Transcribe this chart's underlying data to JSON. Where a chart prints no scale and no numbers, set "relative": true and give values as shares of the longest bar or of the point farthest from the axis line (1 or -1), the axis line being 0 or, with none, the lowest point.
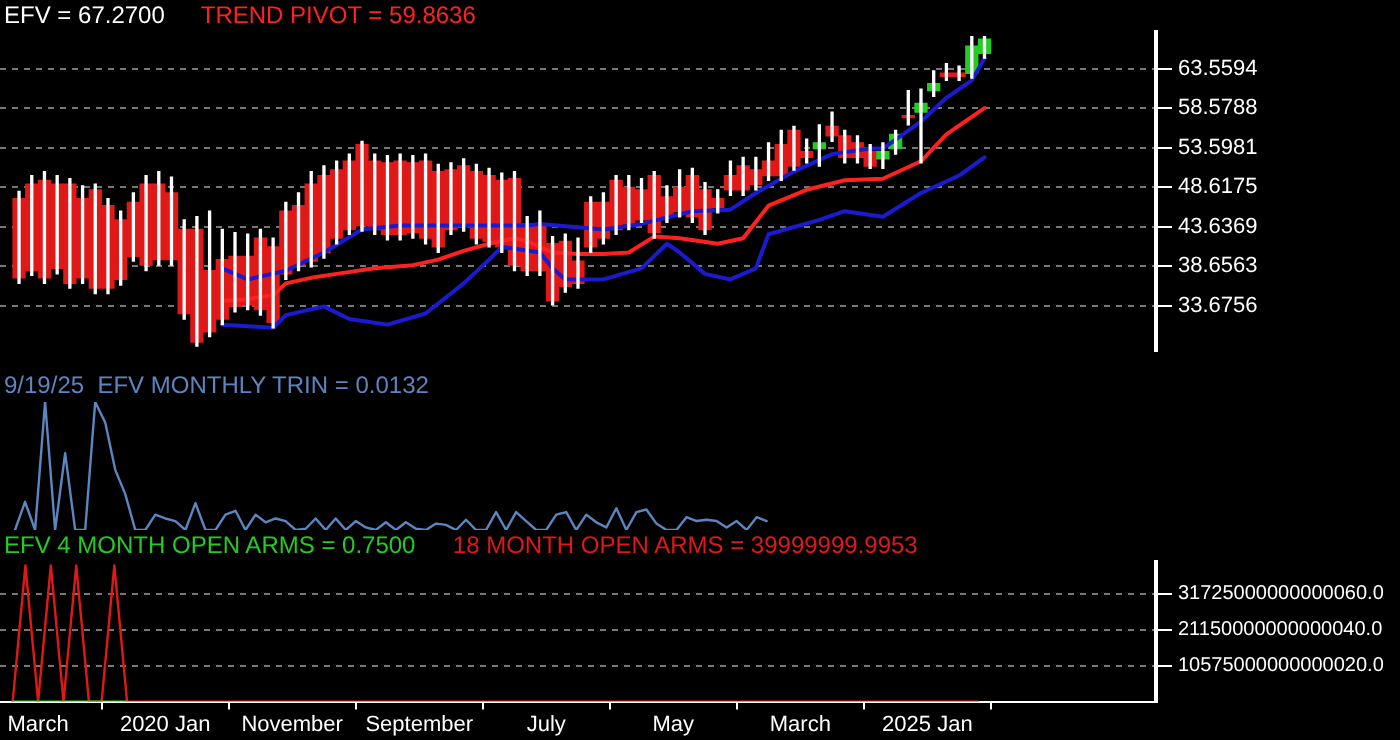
{
  "chart_data": [
    {
      "type": "candlestick",
      "grid": "y",
      "tick_labels": "y",
      "ylim": [
        28,
        68.2
      ],
      "annotations": [
        "EFV = 67.2700"
      ],
      "yticks": [
        33.6756,
        38.6563,
        43.6369,
        48.6175,
        53.5981,
        58.5788,
        63.5594
      ],
      "categories": [
        null,
        null,
        null,
        null,
        null,
        null,
        null,
        null,
        null,
        null,
        null,
        null,
        null,
        null,
        null,
        null,
        null,
        null,
        null,
        null,
        null,
        null,
        null,
        null,
        null,
        null,
        null,
        null,
        null,
        null,
        null,
        null,
        null,
        null,
        null,
        null,
        null,
        null,
        null,
        null,
        null,
        null,
        null,
        null,
        null,
        null,
        null,
        null,
        null,
        null,
        null,
        null,
        null,
        null,
        null,
        null,
        null,
        null,
        null,
        null,
        null,
        null,
        null,
        null,
        null,
        null,
        null,
        null,
        null,
        null,
        null,
        null,
        null,
        null,
        null,
        null,
        null,
        null,
        null,
        null,
        null,
        null,
        null,
        null,
        null,
        null,
        null,
        null,
        null,
        null,
        null
      ],
      "series": [
        {
          "type": "candlestick",
          "color": "#ffffff",
          "ohlc": [
            null,
            [
              47.2,
              48.1,
              36.5,
              37.2
            ],
            [
              49.0,
              50.1,
              37.5,
              38.1
            ],
            [
              49.5,
              50.6,
              36.5,
              37.2
            ],
            [
              49.0,
              50.1,
              37.7,
              38.4
            ],
            [
              49.0,
              49.7,
              35.9,
              36.5
            ],
            [
              47.2,
              48.8,
              36.5,
              37.2
            ],
            [
              48.3,
              49.0,
              35.2,
              35.9
            ],
            [
              46.3,
              47.2,
              35.2,
              35.9
            ],
            [
              44.5,
              45.6,
              36.3,
              37.0
            ],
            [
              46.7,
              47.9,
              39.3,
              39.9
            ],
            [
              49.0,
              50.1,
              38.1,
              38.8
            ],
            [
              49.0,
              50.6,
              38.8,
              39.5
            ],
            [
              47.9,
              49.9,
              38.8,
              39.5
            ],
            [
              43.3,
              44.5,
              32.0,
              32.7
            ],
            [
              43.3,
              44.9,
              28.6,
              29.1
            ],
            [
              38.1,
              45.6,
              29.8,
              30.4
            ],
            [
              39.5,
              43.3,
              31.3,
              32.0
            ],
            [
              39.9,
              42.9,
              32.9,
              33.6
            ],
            [
              39.9,
              42.7,
              33.2,
              33.8
            ],
            [
              42.2,
              43.3,
              32.5,
              33.2
            ],
            [
              41.1,
              42.2,
              30.9,
              31.6
            ],
            [
              45.6,
              46.7,
              37.0,
              37.7
            ],
            [
              46.3,
              47.9,
              38.1,
              38.8
            ],
            [
              49.0,
              50.6,
              38.6,
              39.3
            ],
            [
              50.1,
              51.3,
              39.7,
              40.4
            ],
            [
              50.8,
              51.9,
              41.5,
              42.2
            ],
            [
              51.9,
              52.8,
              42.7,
              43.3
            ],
            [
              54.0,
              54.4,
              43.1,
              43.8
            ],
            [
              51.9,
              52.8,
              42.7,
              43.3
            ],
            [
              51.7,
              52.6,
              42.0,
              42.7
            ],
            [
              51.9,
              52.8,
              42.0,
              42.7
            ],
            [
              51.7,
              52.6,
              42.2,
              42.9
            ],
            [
              51.9,
              52.8,
              41.5,
              42.2
            ],
            [
              50.6,
              51.5,
              40.4,
              41.1
            ],
            [
              50.8,
              51.7,
              42.7,
              43.3
            ],
            [
              51.3,
              52.2,
              43.1,
              43.8
            ],
            [
              50.6,
              51.5,
              41.5,
              42.2
            ],
            [
              50.1,
              51.0,
              41.1,
              41.8
            ],
            [
              49.5,
              50.4,
              40.4,
              41.1
            ],
            [
              49.7,
              50.6,
              38.1,
              38.8
            ],
            [
              44.0,
              44.9,
              37.5,
              38.1
            ],
            [
              44.0,
              45.6,
              37.5,
              38.1
            ],
            [
              41.5,
              42.4,
              33.8,
              34.3
            ],
            [
              41.8,
              42.7,
              35.4,
              36.1
            ],
            [
              39.3,
              42.2,
              35.9,
              36.5
            ],
            [
              46.7,
              47.4,
              40.4,
              41.1
            ],
            [
              46.7,
              47.9,
              41.5,
              42.2
            ],
            [
              49.5,
              50.1,
              42.7,
              43.3
            ],
            [
              48.6,
              50.1,
              43.3,
              44.0
            ],
            [
              48.3,
              49.7,
              44.2,
              44.5
            ],
            [
              50.1,
              50.6,
              42.2,
              42.9
            ],
            [
              47.4,
              48.8,
              44.2,
              44.9
            ],
            [
              48.6,
              50.8,
              44.9,
              45.6
            ],
            [
              50.1,
              51.0,
              44.2,
              44.9
            ],
            [
              48.3,
              49.2,
              42.7,
              43.3
            ],
            [
              47.2,
              48.3,
              45.4,
              46.1
            ],
            [
              50.1,
              51.9,
              47.6,
              48.3
            ],
            [
              51.3,
              52.4,
              47.6,
              48.3
            ],
            [
              50.8,
              52.4,
              48.3,
              49.0
            ],
            [
              51.9,
              54.2,
              49.5,
              50.1
            ],
            [
              54.0,
              55.8,
              49.5,
              50.1
            ],
            [
              55.8,
              56.3,
              50.8,
              51.3
            ],
            [
              53.1,
              54.7,
              51.7,
              52.4
            ],
            [
              53.5,
              56.5,
              51.3,
              54.2
            ],
            [
              56.3,
              58.1,
              54.4,
              55.1
            ],
            [
              55.1,
              55.8,
              51.7,
              52.4
            ],
            [
              54.2,
              55.1,
              51.7,
              52.4
            ],
            [
              53.1,
              54.0,
              51.0,
              51.3
            ],
            [
              52.2,
              54.2,
              51.0,
              53.1
            ],
            [
              53.5,
              55.8,
              52.8,
              55.3
            ],
            [
              57.6,
              60.8,
              56.5,
              57.4
            ],
            [
              58.1,
              61.0,
              51.7,
              59.2
            ],
            [
              60.8,
              63.3,
              60.1,
              61.7
            ],
            [
              63.0,
              64.2,
              62.1,
              62.6
            ],
            [
              63.0,
              63.9,
              62.1,
              62.6
            ],
            [
              63.0,
              67.6,
              62.4,
              66.4
            ],
            [
              65.5,
              67.6,
              64.9,
              67.3
            ],
            null,
            null,
            null,
            null,
            null,
            null,
            null,
            null,
            null,
            null,
            null,
            null,
            null
          ],
          "colors": [
            null,
            "#e01818",
            "#e01818",
            "#e01818",
            "#e01818",
            "#e01818",
            "#e01818",
            "#e01818",
            "#e01818",
            "#e01818",
            "#e01818",
            "#e01818",
            "#e01818",
            "#e01818",
            "#e01818",
            "#e01818",
            "#e01818",
            "#e01818",
            "#e01818",
            "#e01818",
            "#e01818",
            "#e01818",
            "#e01818",
            "#e01818",
            "#e01818",
            "#e01818",
            "#e01818",
            "#e01818",
            "#e01818",
            "#e01818",
            "#e01818",
            "#e01818",
            "#e01818",
            "#e01818",
            "#e01818",
            "#e01818",
            "#e01818",
            "#e01818",
            "#e01818",
            "#e01818",
            "#e01818",
            "#e01818",
            "#e01818",
            "#e01818",
            "#e01818",
            "#e01818",
            "#e01818",
            "#e01818",
            "#e01818",
            "#e01818",
            "#e01818",
            "#e01818",
            "#e01818",
            "#e01818",
            "#e01818",
            "#e01818",
            "#e01818",
            "#e01818",
            "#e01818",
            "#e01818",
            "#e01818",
            "#e01818",
            "#e01818",
            "#e01818",
            "#22cc22",
            "#e01818",
            "#e01818",
            "#e01818",
            "#e01818",
            "#22cc22",
            "#22cc22",
            "#e01818",
            "#22cc22",
            "#22cc22",
            "#e01818",
            "#e01818",
            "#22cc22",
            "#22cc22",
            null,
            null,
            null,
            null,
            null,
            null,
            null,
            null,
            null,
            null,
            null,
            null,
            null
          ]
        },
        {
          "type": "line",
          "name": "TREND PIVOT = 59.8636",
          "color": "#ff2020",
          "values": [
            null,
            null,
            null,
            null,
            null,
            null,
            null,
            null,
            null,
            null,
            null,
            null,
            null,
            null,
            null,
            null,
            null,
            34.3,
            null,
            34.5,
            34.8,
            35.0,
            36.5,
            null,
            37.2,
            null,
            37.7,
            null,
            null,
            38.4,
            null,
            null,
            38.8,
            null,
            39.5,
            null,
            40.6,
            null,
            41.5,
            null,
            42.2,
            41.8,
            null,
            40.4,
            null,
            40.2,
            null,
            40.2,
            null,
            40.4,
            null,
            42.4,
            null,
            42.2,
            null,
            null,
            41.5,
            null,
            42.2,
            null,
            46.3,
            null,
            null,
            48.3,
            null,
            null,
            49.5,
            null,
            null,
            49.7,
            null,
            null,
            51.9,
            null,
            55.3,
            null,
            null,
            58.6,
            null,
            null,
            null,
            null,
            null,
            null,
            null,
            null,
            null,
            null,
            null,
            null,
            null
          ]
        },
        {
          "type": "line",
          "color": "#1a1ad0",
          "values": [
            null,
            null,
            null,
            null,
            null,
            null,
            null,
            null,
            null,
            null,
            null,
            null,
            null,
            null,
            null,
            null,
            null,
            38.4,
            null,
            37.0,
            null,
            null,
            38.1,
            null,
            null,
            40.4,
            null,
            null,
            43.3,
            null,
            null,
            43.8,
            null,
            null,
            null,
            null,
            43.8,
            null,
            null,
            null,
            null,
            43.8,
            44.0,
            null,
            null,
            null,
            null,
            43.3,
            null,
            null,
            44.0,
            null,
            null,
            null,
            45.6,
            null,
            null,
            45.8,
            null,
            47.9,
            null,
            null,
            50.6,
            null,
            null,
            52.8,
            null,
            null,
            53.5,
            53.5,
            null,
            null,
            56.9,
            null,
            59.9,
            null,
            62.1,
            64.9,
            null,
            null,
            null,
            null,
            null,
            null,
            null,
            null,
            null,
            null,
            null,
            null,
            null
          ]
        },
        {
          "type": "line",
          "color": "#1a1ad0",
          "values": [
            null,
            null,
            null,
            null,
            null,
            null,
            null,
            null,
            null,
            null,
            null,
            null,
            null,
            null,
            null,
            null,
            null,
            31.3,
            null,
            null,
            null,
            30.9,
            32.5,
            null,
            null,
            33.6,
            null,
            32.0,
            null,
            null,
            31.3,
            null,
            null,
            32.7,
            null,
            null,
            36.5,
            null,
            39.5,
            41.1,
            null,
            null,
            40.4,
            38.4,
            37.0,
            null,
            null,
            37.0,
            null,
            null,
            38.4,
            null,
            41.5,
            40.4,
            null,
            37.7,
            null,
            37.0,
            null,
            38.4,
            42.7,
            null,
            null,
            null,
            44.5,
            null,
            45.6,
            null,
            null,
            44.9,
            null,
            null,
            47.9,
            null,
            null,
            50.1,
            null,
            52.4,
            null,
            null,
            null,
            null,
            null,
            null,
            null,
            null,
            null,
            null,
            null,
            null,
            null
          ]
        }
      ]
    },
    {
      "type": "line",
      "relative": true,
      "tick_labels": false,
      "categories": [
        null,
        null,
        null,
        null,
        null,
        null,
        null,
        null,
        null,
        null,
        null,
        null,
        null,
        null,
        null,
        null,
        null,
        null,
        null,
        null,
        null,
        null,
        null,
        null,
        null,
        null,
        null,
        null,
        null,
        null,
        null,
        null,
        null,
        null,
        null,
        null,
        null,
        null,
        null,
        null,
        null,
        null,
        null,
        null,
        null,
        null,
        null,
        null,
        null,
        null,
        null,
        null,
        null,
        null,
        null,
        null,
        null,
        null,
        null,
        null,
        null,
        null,
        null,
        null,
        null,
        null,
        null,
        null,
        null,
        null,
        null,
        null,
        null,
        null,
        null,
        null,
        null,
        null,
        null,
        null,
        null,
        null,
        null,
        null,
        null,
        null,
        null,
        null,
        null,
        null,
        null
      ],
      "series": [
        {
          "name": "9/19/25  EFV MONTHLY TRIN = 0.0132",
          "color": "#5d85c0",
          "values": [
            null,
            0,
            0.22,
            0,
            1,
            0,
            0.6,
            0,
            0,
            1,
            0.84,
            0.47,
            0.28,
            0,
            0,
            0.12,
            0.09,
            0.07,
            0,
            0.21,
            0,
            0,
            0.12,
            0.15,
            0,
            0.12,
            0.06,
            0.09,
            0.07,
            0,
            0.01,
            0.09,
            0,
            0.09,
            0,
            0.07,
            0.02,
            0,
            0.06,
            0,
            0.06,
            0.01,
            0,
            0.05,
            0.04,
            0,
            0.08,
            0,
            0,
            0.14,
            0,
            0.14,
            0.07,
            0,
            0,
            0.12,
            0.14,
            0,
            0.12,
            0.06,
            0.02,
            0.17,
            0,
            0.14,
            0.16,
            0.05,
            0,
            0,
            0.1,
            0.07,
            0.08,
            0.07,
            0.02,
            0.07,
            0,
            0.1,
            0.07,
            null,
            null,
            null,
            null,
            null,
            null,
            null,
            null,
            null,
            null,
            null,
            null,
            null,
            null
          ]
        }
      ]
    },
    {
      "type": "line",
      "grid": "y",
      "xlim": [
        "2018-12",
        "2026-07"
      ],
      "ylim": [
        0,
        41000000000000000
      ],
      "yticks": [
        {
          "value": 10575000000000020,
          "label": "10575000000000020.0"
        },
        {
          "value": 21150000000000040,
          "label": "21150000000000040.0"
        },
        {
          "value": 31725000000000060,
          "label": "31725000000000060.0"
        }
      ],
      "xticks": [
        {
          "value": "2019-03",
          "label": "March"
        },
        {
          "value": "2020-01",
          "label": "2020 Jan"
        },
        {
          "value": "2020-11",
          "label": "November"
        },
        {
          "value": "2021-09",
          "label": "September"
        },
        {
          "value": "2022-07",
          "label": "July"
        },
        {
          "value": "2023-05",
          "label": "May"
        },
        {
          "value": "2024-03",
          "label": "March"
        },
        {
          "value": "2025-01",
          "label": "2025 Jan"
        }
      ],
      "series": [
        {
          "name": "EFV 4 MONTH OPEN ARMS = 0.7500",
          "color": "#22cc22",
          "x": [
            "2019-01",
            "2019-02",
            "2019-03",
            "2019-04",
            "2019-05",
            "2019-06",
            "2019-07",
            "2019-08",
            "2019-09",
            "2019-10"
          ],
          "values": [
            0,
            0,
            0,
            0,
            0,
            0,
            0,
            0,
            0,
            0
          ]
        },
        {
          "name": "18 MONTH OPEN ARMS = 39999999.9953",
          "color": "#e01818",
          "x": [
            "2019-01",
            "2019-02",
            "2019-03",
            "2019-04",
            "2019-05",
            "2019-06",
            "2019-07",
            "2019-08",
            "2019-09",
            "2019-10",
            "2019-11",
            "2019-12",
            "2020-01",
            "2020-02",
            "2020-03",
            "2020-04",
            "2020-05",
            "2020-06",
            "2020-07",
            "2020-08",
            "2020-09",
            "2020-10",
            "2020-11",
            "2020-12",
            "2021-01",
            "2021-02",
            "2021-03",
            "2021-04",
            "2021-05",
            "2021-06",
            "2021-07",
            "2021-08",
            "2021-09",
            "2021-10",
            "2021-11",
            "2021-12",
            "2022-01",
            "2022-02",
            "2022-03",
            "2022-04",
            "2022-05",
            "2022-06",
            "2022-07",
            "2022-08",
            "2022-09",
            "2022-10",
            "2022-11",
            "2022-12",
            "2023-01",
            "2023-02",
            "2023-03",
            "2023-04",
            "2023-05",
            "2023-06",
            "2023-07",
            "2023-08",
            "2023-09",
            "2023-10",
            "2023-11",
            "2023-12",
            "2024-01",
            "2024-02",
            "2024-03",
            "2024-04",
            "2024-05",
            "2024-06",
            "2024-07",
            "2024-08",
            "2024-09",
            "2024-10",
            "2024-11",
            "2024-12",
            "2025-01",
            "2025-02",
            "2025-03",
            "2025-04",
            "2025-05"
          ],
          "values": [
            0,
            4e+16,
            0,
            4e+16,
            0,
            4e+16,
            0,
            0,
            4e+16,
            0,
            0,
            0,
            0,
            0,
            0,
            0,
            0,
            0,
            0,
            0,
            0,
            0,
            0,
            0,
            0,
            0,
            0,
            0,
            0,
            0,
            0,
            0,
            0,
            0,
            0,
            0,
            0,
            0,
            0,
            0,
            0,
            0,
            0,
            0,
            0,
            0,
            0,
            0,
            0,
            0,
            0,
            0,
            0,
            0,
            0,
            0,
            0,
            0,
            0,
            0,
            0,
            0,
            0,
            0,
            0,
            0,
            0,
            0,
            0,
            0,
            0,
            0,
            0,
            0,
            0,
            0,
            0
          ]
        }
      ]
    }
  ]
}
